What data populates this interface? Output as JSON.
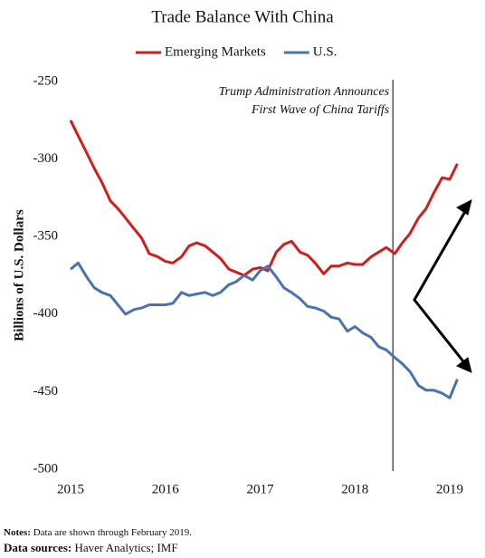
{
  "chart_data": {
    "type": "line",
    "title": "Trade Balance With China",
    "y_label": "Billions of U.S. Dollars",
    "annotation": {
      "lines": [
        "Trump Administration Announces",
        "First Wave of China Tariffs"
      ],
      "x": 2018.4
    },
    "x": [
      2015,
      2015.08,
      2015.17,
      2015.25,
      2015.33,
      2015.42,
      2015.5,
      2015.58,
      2015.67,
      2015.75,
      2015.83,
      2015.92,
      2016,
      2016.08,
      2016.17,
      2016.25,
      2016.33,
      2016.42,
      2016.5,
      2016.58,
      2016.67,
      2016.75,
      2016.83,
      2016.92,
      2017,
      2017.08,
      2017.17,
      2017.25,
      2017.33,
      2017.42,
      2017.5,
      2017.58,
      2017.67,
      2017.75,
      2017.83,
      2017.92,
      2018,
      2018.08,
      2018.17,
      2018.25,
      2018.33,
      2018.42,
      2018.5,
      2018.58,
      2018.67,
      2018.75,
      2018.83,
      2018.92,
      2019,
      2019.08
    ],
    "series": [
      {
        "name": "Emerging Markets",
        "color": "#cc1f1f",
        "values": [
          -275,
          -285,
          -296,
          -306,
          -315,
          -327,
          -332,
          -338,
          -345,
          -351,
          -361,
          -363,
          -366,
          -367,
          -363,
          -356,
          -354,
          -356,
          -360,
          -364,
          -371,
          -373,
          -375,
          -371,
          -370,
          -372,
          -360,
          -355,
          -353,
          -360,
          -362,
          -367,
          -374,
          -369,
          -369,
          -367,
          -368,
          -368,
          -363,
          -360,
          -357,
          -361,
          -354,
          -348,
          -338,
          -332,
          -322,
          -312,
          -313,
          -303
        ]
      },
      {
        "name": "U.S.",
        "color": "#4a72b0",
        "values": [
          -371,
          -367,
          -376,
          -383,
          -386,
          -388,
          -394,
          -400,
          -397,
          -396,
          -394,
          -394,
          -394,
          -393,
          -386,
          -388,
          -387,
          -386,
          -388,
          -386,
          -381,
          -379,
          -375,
          -378,
          -372,
          -369,
          -376,
          -383,
          -386,
          -390,
          -395,
          -396,
          -398,
          -402,
          -403,
          -411,
          -408,
          -412,
          -415,
          -421,
          -423,
          -428,
          -432,
          -437,
          -446,
          -449,
          -449,
          -451,
          -454,
          -442
        ]
      }
    ],
    "xlim": [
      2015,
      2019.2
    ],
    "xticks": [
      2015,
      2016,
      2017,
      2018,
      2019
    ],
    "ylim": [
      -500,
      -250
    ],
    "yticks": [
      -250,
      -300,
      -350,
      -400,
      -450,
      -500
    ],
    "grid": false,
    "legend": "top",
    "notes": {
      "label": "Notes:",
      "text": "Data are shown through February 2019."
    },
    "sources": {
      "label": "Data sources:",
      "text": "Haver Analytics; IMF"
    }
  }
}
